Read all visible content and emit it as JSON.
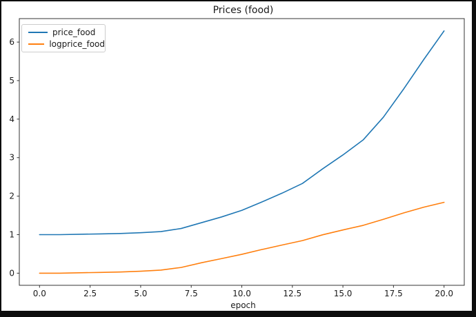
{
  "chart_data": {
    "type": "line",
    "title": "Prices (food)",
    "xlabel": "epoch",
    "ylabel": "",
    "x": [
      0,
      1,
      2,
      3,
      4,
      5,
      6,
      7,
      8,
      9,
      10,
      11,
      12,
      13,
      14,
      15,
      16,
      17,
      18,
      19,
      20
    ],
    "series": [
      {
        "name": "price_food",
        "color": "#1f77b4",
        "values": [
          1.0,
          1.0,
          1.01,
          1.02,
          1.03,
          1.05,
          1.08,
          1.16,
          1.31,
          1.46,
          1.63,
          1.85,
          2.08,
          2.33,
          2.71,
          3.07,
          3.46,
          4.05,
          4.78,
          5.55,
          6.29
        ]
      },
      {
        "name": "logprice_food",
        "color": "#ff7f0e",
        "values": [
          0.0,
          0.0,
          0.01,
          0.02,
          0.03,
          0.05,
          0.08,
          0.148,
          0.27,
          0.378,
          0.489,
          0.615,
          0.732,
          0.846,
          0.997,
          1.122,
          1.241,
          1.399,
          1.564,
          1.714,
          1.839
        ]
      }
    ],
    "xlim": [
      -1,
      21
    ],
    "ylim": [
      -0.315,
      6.61
    ],
    "xticks": [
      0.0,
      2.5,
      5.0,
      7.5,
      10.0,
      12.5,
      15.0,
      17.5,
      20.0
    ],
    "xtick_labels": [
      "0.0",
      "2.5",
      "5.0",
      "7.5",
      "10.0",
      "12.5",
      "15.0",
      "17.5",
      "20.0"
    ],
    "yticks": [
      0,
      1,
      2,
      3,
      4,
      5,
      6
    ],
    "ytick_labels": [
      "0",
      "1",
      "2",
      "3",
      "4",
      "5",
      "6"
    ],
    "legend_position": "upper left",
    "grid": false
  },
  "colors": {
    "page_bg": "#0d0d0d",
    "figure_bg": "#ffffff",
    "axis": "#333333",
    "tick_text": "#1a1a1a"
  }
}
